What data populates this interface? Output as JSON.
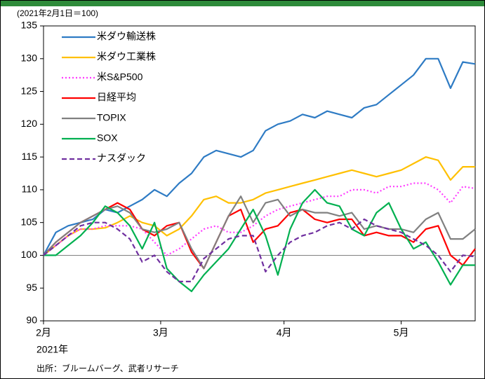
{
  "chart_data": {
    "type": "line",
    "annotations": [
      "(2021年2月1日＝100)",
      "2021年",
      "出所：ブルームバーグ、武者リサーチ"
    ],
    "x": [
      0,
      2,
      4,
      6,
      8,
      10,
      12,
      14,
      16,
      18,
      20,
      22,
      24,
      26,
      28,
      30,
      32,
      34,
      36,
      38,
      40,
      42,
      44,
      46,
      48,
      50,
      52,
      54,
      56,
      58,
      60,
      62,
      64,
      66,
      68,
      70
    ],
    "xlim": [
      0,
      70
    ],
    "xticks": [
      {
        "value": 0,
        "label": "2月"
      },
      {
        "value": 19,
        "label": "3月"
      },
      {
        "value": 39,
        "label": "4月"
      },
      {
        "value": 58,
        "label": "5月"
      }
    ],
    "ylim": [
      90,
      135
    ],
    "yticks": [
      90,
      95,
      100,
      105,
      110,
      115,
      120,
      125,
      130,
      135
    ],
    "hline": 100,
    "grid": false,
    "legend": "upper-left",
    "series": [
      {
        "name": "米ダウ輸送株",
        "color": "#2e7bc4",
        "dash": "solid",
        "values": [
          100,
          103.5,
          104.5,
          105,
          105.5,
          107,
          106.5,
          107.5,
          108.5,
          110,
          109,
          111,
          112.5,
          115,
          116,
          115.5,
          115,
          116,
          119,
          120,
          120.5,
          121.5,
          121,
          122,
          121.5,
          121,
          122.5,
          123,
          124.5,
          126,
          127.5,
          130,
          130,
          125.5,
          129.5,
          129.2
        ]
      },
      {
        "name": "米ダウ工業株",
        "color": "#ffc000",
        "dash": "solid",
        "values": [
          100,
          101.5,
          103,
          104,
          104,
          104.2,
          105,
          106,
          105,
          104.5,
          103,
          104,
          106,
          108.5,
          109,
          108,
          108,
          108.5,
          109.5,
          110,
          110.5,
          111,
          111.5,
          112,
          112.5,
          113,
          112.5,
          112,
          112.5,
          113,
          114,
          115,
          114.5,
          111.5,
          113.5,
          113.5
        ]
      },
      {
        "name": "米S&P500",
        "color": "#ff3cff",
        "dash": "dotted",
        "values": [
          100,
          101.5,
          103,
          104,
          104,
          104.5,
          104.5,
          104.5,
          104,
          102,
          100,
          101,
          102.5,
          104,
          104.5,
          103.5,
          103.5,
          104.5,
          106,
          107,
          107.5,
          108,
          108.5,
          109,
          109,
          110,
          110,
          109.5,
          110.5,
          110.5,
          111,
          111,
          110,
          108,
          110.5,
          110.2
        ]
      },
      {
        "name": "日経平均",
        "color": "#ff0000",
        "dash": "solid",
        "values": [
          100,
          102,
          103.5,
          105,
          106,
          107,
          108,
          107,
          104,
          103,
          104.5,
          105,
          100.5,
          98,
          102,
          106,
          107,
          102,
          104,
          104.5,
          106.5,
          107,
          105.5,
          105,
          105.5,
          105.5,
          103,
          103.5,
          103,
          103,
          102,
          104,
          104.5,
          100,
          98.5,
          101
        ]
      },
      {
        "name": "TOPIX",
        "color": "#808080",
        "dash": "solid",
        "values": [
          100,
          102,
          103.5,
          105,
          106,
          107,
          107.5,
          106.5,
          104,
          103.5,
          104,
          105,
          101,
          98,
          102,
          106,
          109,
          105,
          108,
          108.5,
          106,
          107,
          106.5,
          106.5,
          106,
          106.5,
          104,
          104.5,
          104,
          104,
          103.5,
          105.5,
          106.5,
          102.5,
          102.5,
          104
        ]
      },
      {
        "name": "SOX",
        "color": "#00b050",
        "dash": "solid",
        "values": [
          100,
          100,
          101.5,
          103,
          105,
          107.5,
          106.5,
          104.5,
          101,
          105,
          98,
          96,
          94.5,
          97,
          99,
          101,
          104,
          107,
          103,
          97,
          104,
          108,
          110,
          108,
          107.5,
          104,
          103,
          106.5,
          108,
          104,
          101,
          102,
          99,
          95.5,
          98.5,
          98.5
        ]
      },
      {
        "name": "ナスダック",
        "color": "#7030a0",
        "dash": "dashed",
        "values": [
          100,
          101.5,
          103,
          104.5,
          105,
          105,
          104,
          102.5,
          99,
          100,
          97.5,
          96,
          96,
          99.5,
          101,
          102.5,
          103,
          103,
          97.5,
          100,
          102,
          103,
          103.5,
          104.5,
          105,
          104,
          105.5,
          104.5,
          104,
          103.5,
          102.5,
          101.5,
          100,
          97.5,
          100,
          99.8
        ]
      }
    ]
  }
}
